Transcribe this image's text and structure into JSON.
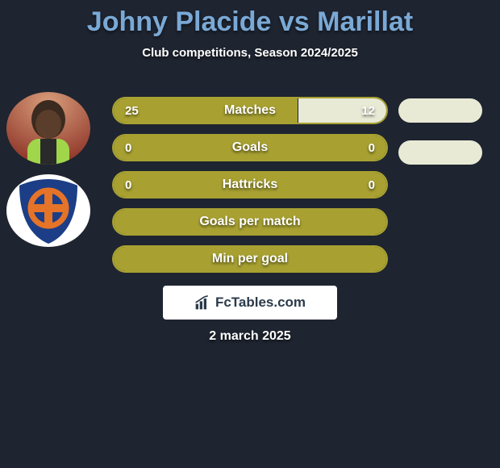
{
  "title": "Johny Placide vs Marillat",
  "subtitle": "Club competitions, Season 2024/2025",
  "date": "2 march 2025",
  "branding_text": "FcTables.com",
  "colors": {
    "background": "#1e2430",
    "title": "#7aa9d6",
    "text": "#ffffff",
    "player1_fill": "#a8a132",
    "player1_border": "#a8a132",
    "player2_fill": "#e8ead5",
    "player2_border": "#a8a132",
    "branding_bg": "#ffffff",
    "branding_text": "#2b3a4a"
  },
  "stats": [
    {
      "label": "Matches",
      "p1": "25",
      "p2": "12",
      "p1_pct": 67.6,
      "p2_pct": 32.4
    },
    {
      "label": "Goals",
      "p1": "0",
      "p2": "0",
      "p1_pct": 100,
      "p2_pct": 0
    },
    {
      "label": "Hattricks",
      "p1": "0",
      "p2": "0",
      "p1_pct": 100,
      "p2_pct": 0
    },
    {
      "label": "Goals per match",
      "p1": "",
      "p2": "",
      "p1_pct": 100,
      "p2_pct": 0
    },
    {
      "label": "Min per goal",
      "p1": "",
      "p2": "",
      "p1_pct": 100,
      "p2_pct": 0
    }
  ],
  "avatars": {
    "player1": {
      "name": "johny-placide-avatar"
    },
    "player2": {
      "name": "marillat-club-badge"
    }
  },
  "pill_colors": {
    "p1": "#e8ead5",
    "p2": "#e8ead5"
  },
  "row_style": {
    "height": 34,
    "border_radius": 17,
    "border_width": 2,
    "font_size_label": 16,
    "font_size_value": 15,
    "gap": 12
  }
}
